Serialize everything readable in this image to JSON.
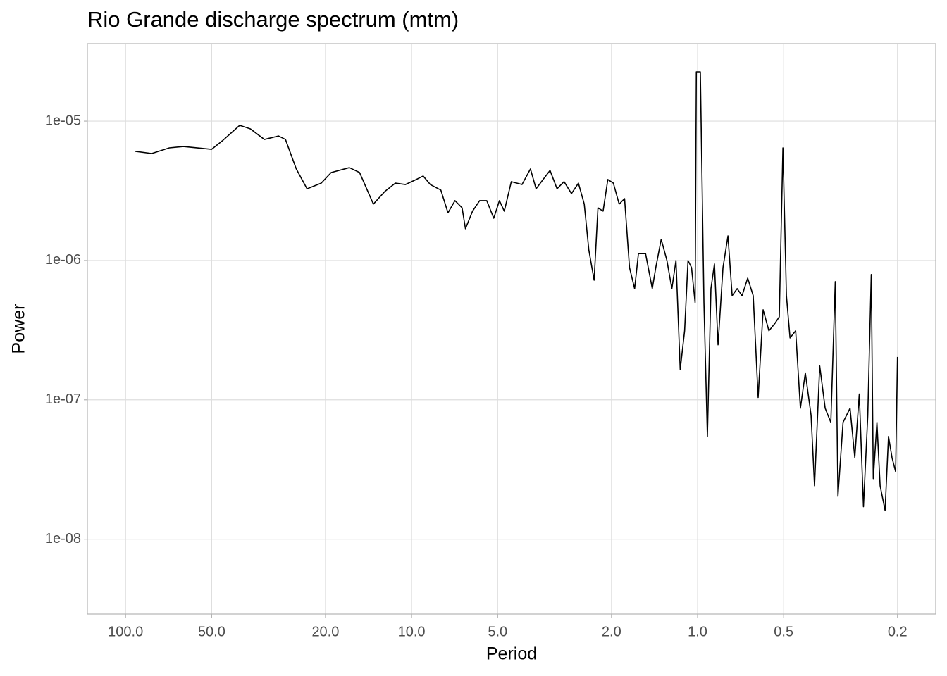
{
  "chart_data": {
    "type": "line",
    "title": "Rio Grande discharge spectrum (mtm)",
    "x_label": "Period",
    "y_label": "Power",
    "log_x": true,
    "log_y": true,
    "x_reversed": true,
    "grid": true,
    "color": "#000000",
    "xlim": [
      136,
      0.147
    ],
    "ylim": [
      2.9e-09,
      3.6e-05
    ],
    "xticks": [
      {
        "value": 100,
        "label": "100.0"
      },
      {
        "value": 50,
        "label": "50.0"
      },
      {
        "value": 20,
        "label": "20.0"
      },
      {
        "value": 10,
        "label": "10.0"
      },
      {
        "value": 5,
        "label": "5.0"
      },
      {
        "value": 2,
        "label": "2.0"
      },
      {
        "value": 1,
        "label": "1.0"
      },
      0.5,
      0.2
    ],
    "yticks": [
      {
        "value": 1e-05,
        "label": "1e-05"
      },
      {
        "value": 1e-06,
        "label": "1e-06"
      },
      {
        "value": 1e-07,
        "label": "1e-07"
      },
      {
        "value": 1e-08,
        "label": "1e-08"
      }
    ],
    "x": [
      92.4,
      81.0,
      70.3,
      62.8,
      50.0,
      45.9,
      39.9,
      36.6,
      32.7,
      29.2,
      27.6,
      25.3,
      23.2,
      20.7,
      19.1,
      16.5,
      15.2,
      13.6,
      12.4,
      11.4,
      10.5,
      9.64,
      9.11,
      8.6,
      7.9,
      7.46,
      7.05,
      6.66,
      6.48,
      6.12,
      5.78,
      5.46,
      5.16,
      4.93,
      4.74,
      4.48,
      4.11,
      3.84,
      3.67,
      3.47,
      3.28,
      3.1,
      2.93,
      2.76,
      2.61,
      2.49,
      2.4,
      2.3,
      2.23,
      2.14,
      2.06,
      1.97,
      1.88,
      1.8,
      1.73,
      1.66,
      1.61,
      1.52,
      1.44,
      1.4,
      1.34,
      1.28,
      1.23,
      1.19,
      1.15,
      1.11,
      1.08,
      1.05,
      1.02,
      1.01,
      0.978,
      0.95,
      0.924,
      0.898,
      0.873,
      0.848,
      0.815,
      0.783,
      0.757,
      0.727,
      0.699,
      0.668,
      0.639,
      0.614,
      0.59,
      0.563,
      0.538,
      0.518,
      0.503,
      0.489,
      0.475,
      0.454,
      0.437,
      0.42,
      0.401,
      0.39,
      0.374,
      0.358,
      0.342,
      0.33,
      0.323,
      0.31,
      0.293,
      0.282,
      0.272,
      0.263,
      0.254,
      0.247,
      0.243,
      0.236,
      0.23,
      0.221,
      0.215,
      0.209,
      0.203,
      0.2
    ],
    "values": [
      6.07e-06,
      5.86e-06,
      6.43e-06,
      6.58e-06,
      6.28e-06,
      7.22e-06,
      9.33e-06,
      8.8e-06,
      7.39e-06,
      7.83e-06,
      7.39e-06,
      4.54e-06,
      3.27e-06,
      3.59e-06,
      4.28e-06,
      4.64e-06,
      4.28e-06,
      2.54e-06,
      3.13e-06,
      3.59e-06,
      3.51e-06,
      3.81e-06,
      4.04e-06,
      3.51e-06,
      3.2e-06,
      2.2e-06,
      2.69e-06,
      2.39e-06,
      1.69e-06,
      2.26e-06,
      2.69e-06,
      2.69e-06,
      2.01e-06,
      2.69e-06,
      2.26e-06,
      3.68e-06,
      3.51e-06,
      4.54e-06,
      3.27e-06,
      3.81e-06,
      4.43e-06,
      3.27e-06,
      3.68e-06,
      3.02e-06,
      3.59e-06,
      2.54e-06,
      1.19e-06,
      7.22e-07,
      2.39e-06,
      2.26e-06,
      3.81e-06,
      3.59e-06,
      2.54e-06,
      2.78e-06,
      8.9e-07,
      6.28e-07,
      1.12e-06,
      1.12e-06,
      6.28e-07,
      8.9e-07,
      1.42e-06,
      1e-06,
      6.28e-07,
      1e-06,
      1.65e-07,
      3.13e-07,
      1e-06,
      8.9e-07,
      4.98e-07,
      2.26e-05,
      2.26e-05,
      4.98e-07,
      5.46e-08,
      6.28e-07,
      9.43e-07,
      2.48e-07,
      8.9e-07,
      1.5e-06,
      5.59e-07,
      6.28e-07,
      5.59e-07,
      7.47e-07,
      5.59e-07,
      1.04e-07,
      4.43e-07,
      3.13e-07,
      3.51e-07,
      3.94e-07,
      6.43e-06,
      5.59e-07,
      2.78e-07,
      3.13e-07,
      8.7e-08,
      1.56e-07,
      7.74e-08,
      2.42e-08,
      1.75e-07,
      8.7e-08,
      6.89e-08,
      7.05e-07,
      2.03e-08,
      6.89e-08,
      8.7e-08,
      3.85e-08,
      1.1e-07,
      1.71e-08,
      7.74e-08,
      7.93e-07,
      2.72e-08,
      6.89e-08,
      2.42e-08,
      1.61e-08,
      5.46e-08,
      3.85e-08,
      3.05e-08,
      2.03e-07
    ]
  }
}
